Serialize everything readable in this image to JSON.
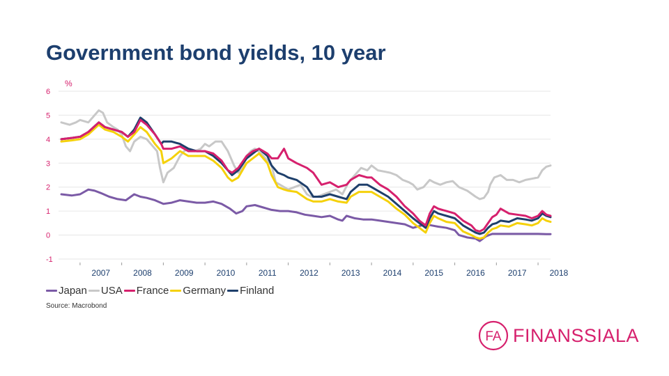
{
  "slide": {
    "title": "Government bond yields, 10 year",
    "source": "Source: Macrobond"
  },
  "logo": {
    "mark_letters": "FA",
    "name": "FINANSSIALA",
    "color": "#d6206d"
  },
  "chart_data": {
    "type": "line",
    "title": "Government bond yields, 10 year",
    "ylabel": "%",
    "xlabel": "",
    "ylim": [
      -1,
      6
    ],
    "yticks": [
      "6",
      "5",
      "4",
      "3",
      "2",
      "1",
      "0",
      "-1"
    ],
    "xlim": [
      2006.55,
      2018.3
    ],
    "year_labels": [
      "2007",
      "2008",
      "2009",
      "2010",
      "2011",
      "2012",
      "2013",
      "2014",
      "2015",
      "2016",
      "2017",
      "2018"
    ],
    "grid": true,
    "legend": "bottom-left",
    "series": [
      {
        "name": "USA",
        "color": "#c8c8c8",
        "x": [
          2006.55,
          2006.75,
          2006.9,
          2007.0,
          2007.2,
          2007.35,
          2007.45,
          2007.55,
          2007.65,
          2007.8,
          2007.9,
          2008.0,
          2008.1,
          2008.2,
          2008.3,
          2008.45,
          2008.6,
          2008.75,
          2008.85,
          2008.92,
          2009.0,
          2009.1,
          2009.25,
          2009.4,
          2009.5,
          2009.6,
          2009.75,
          2009.9,
          2010.0,
          2010.1,
          2010.25,
          2010.4,
          2010.55,
          2010.7,
          2010.8,
          2010.9,
          2011.0,
          2011.1,
          2011.2,
          2011.35,
          2011.5,
          2011.6,
          2011.7,
          2011.8,
          2011.9,
          2012.0,
          2012.15,
          2012.3,
          2012.45,
          2012.55,
          2012.7,
          2012.85,
          2013.0,
          2013.15,
          2013.3,
          2013.45,
          2013.6,
          2013.75,
          2013.9,
          2014.0,
          2014.15,
          2014.3,
          2014.45,
          2014.6,
          2014.75,
          2014.9,
          2015.0,
          2015.1,
          2015.25,
          2015.4,
          2015.5,
          2015.65,
          2015.8,
          2015.95,
          2016.1,
          2016.3,
          2016.5,
          2016.6,
          2016.7,
          2016.8,
          2016.85,
          2016.95,
          2017.1,
          2017.25,
          2017.4,
          2017.55,
          2017.7,
          2017.85,
          2018.0,
          2018.1,
          2018.2,
          2018.3
        ],
        "y": [
          4.7,
          4.6,
          4.7,
          4.8,
          4.7,
          5.0,
          5.2,
          5.1,
          4.7,
          4.5,
          4.4,
          4.2,
          3.7,
          3.5,
          3.9,
          4.1,
          4.0,
          3.7,
          3.5,
          2.8,
          2.2,
          2.6,
          2.8,
          3.3,
          3.5,
          3.6,
          3.5,
          3.6,
          3.8,
          3.7,
          3.9,
          3.9,
          3.5,
          2.9,
          2.6,
          2.8,
          3.3,
          3.5,
          3.6,
          3.4,
          3.1,
          2.9,
          2.2,
          2.1,
          2.0,
          1.9,
          2.0,
          2.1,
          1.7,
          1.6,
          1.6,
          1.7,
          1.8,
          1.9,
          1.7,
          2.2,
          2.5,
          2.8,
          2.7,
          2.9,
          2.7,
          2.65,
          2.6,
          2.5,
          2.3,
          2.2,
          2.1,
          1.9,
          2.0,
          2.3,
          2.2,
          2.1,
          2.2,
          2.25,
          2.0,
          1.85,
          1.6,
          1.5,
          1.55,
          1.8,
          2.1,
          2.4,
          2.5,
          2.3,
          2.3,
          2.2,
          2.3,
          2.35,
          2.4,
          2.7,
          2.85,
          2.9
        ]
      },
      {
        "name": "Japan",
        "color": "#7b5aa6",
        "x": [
          2006.55,
          2006.8,
          2007.0,
          2007.2,
          2007.35,
          2007.5,
          2007.7,
          2007.9,
          2008.1,
          2008.3,
          2008.45,
          2008.6,
          2008.8,
          2009.0,
          2009.2,
          2009.4,
          2009.6,
          2009.8,
          2010.0,
          2010.2,
          2010.4,
          2010.6,
          2010.75,
          2010.9,
          2011.0,
          2011.2,
          2011.4,
          2011.6,
          2011.8,
          2012.0,
          2012.2,
          2012.4,
          2012.6,
          2012.8,
          2013.0,
          2013.2,
          2013.3,
          2013.4,
          2013.6,
          2013.8,
          2014.0,
          2014.2,
          2014.4,
          2014.6,
          2014.8,
          2015.0,
          2015.1,
          2015.2,
          2015.3,
          2015.45,
          2015.6,
          2015.8,
          2016.0,
          2016.1,
          2016.3,
          2016.5,
          2016.6,
          2016.75,
          2016.9,
          2017.0,
          2017.2,
          2017.4,
          2017.6,
          2017.8,
          2018.0,
          2018.2,
          2018.3
        ],
        "y": [
          1.7,
          1.65,
          1.7,
          1.9,
          1.85,
          1.75,
          1.6,
          1.5,
          1.45,
          1.7,
          1.6,
          1.55,
          1.45,
          1.3,
          1.35,
          1.45,
          1.4,
          1.35,
          1.35,
          1.4,
          1.3,
          1.1,
          0.9,
          1.0,
          1.2,
          1.25,
          1.15,
          1.05,
          1.0,
          1.0,
          0.95,
          0.85,
          0.8,
          0.75,
          0.8,
          0.65,
          0.6,
          0.8,
          0.7,
          0.65,
          0.65,
          0.6,
          0.55,
          0.5,
          0.45,
          0.3,
          0.35,
          0.4,
          0.45,
          0.4,
          0.35,
          0.3,
          0.2,
          0.0,
          -0.1,
          -0.15,
          -0.25,
          -0.05,
          0.05,
          0.05,
          0.05,
          0.05,
          0.05,
          0.05,
          0.05,
          0.04,
          0.04
        ]
      },
      {
        "name": "Germany",
        "color": "#f5d10a",
        "x": [
          2006.55,
          2006.8,
          2007.0,
          2007.2,
          2007.45,
          2007.6,
          2007.8,
          2008.0,
          2008.15,
          2008.3,
          2008.45,
          2008.6,
          2008.8,
          2008.95,
          2009.0,
          2009.2,
          2009.4,
          2009.6,
          2009.8,
          2010.0,
          2010.2,
          2010.4,
          2010.55,
          2010.65,
          2010.8,
          2011.0,
          2011.15,
          2011.3,
          2011.5,
          2011.6,
          2011.75,
          2011.9,
          2012.0,
          2012.2,
          2012.45,
          2012.6,
          2012.8,
          2013.0,
          2013.2,
          2013.4,
          2013.5,
          2013.7,
          2013.9,
          2014.0,
          2014.2,
          2014.4,
          2014.6,
          2014.8,
          2015.0,
          2015.15,
          2015.3,
          2015.4,
          2015.5,
          2015.6,
          2015.8,
          2016.0,
          2016.2,
          2016.4,
          2016.5,
          2016.6,
          2016.7,
          2016.8,
          2016.9,
          2017.0,
          2017.1,
          2017.3,
          2017.5,
          2017.7,
          2017.85,
          2018.0,
          2018.1,
          2018.2,
          2018.3
        ],
        "y": [
          3.9,
          3.95,
          4.0,
          4.2,
          4.6,
          4.4,
          4.3,
          4.1,
          3.9,
          4.2,
          4.5,
          4.3,
          3.8,
          3.5,
          3.0,
          3.2,
          3.5,
          3.3,
          3.3,
          3.3,
          3.1,
          2.8,
          2.4,
          2.25,
          2.4,
          3.0,
          3.2,
          3.4,
          3.0,
          2.5,
          2.0,
          1.9,
          1.85,
          1.8,
          1.5,
          1.4,
          1.4,
          1.5,
          1.4,
          1.35,
          1.6,
          1.8,
          1.8,
          1.8,
          1.6,
          1.4,
          1.1,
          0.85,
          0.5,
          0.3,
          0.1,
          0.5,
          0.8,
          0.7,
          0.55,
          0.5,
          0.15,
          0.0,
          -0.1,
          -0.15,
          -0.1,
          0.1,
          0.25,
          0.3,
          0.4,
          0.35,
          0.5,
          0.45,
          0.4,
          0.5,
          0.7,
          0.6,
          0.55
        ]
      },
      {
        "name": "Finland",
        "color": "#1e3f6b",
        "x": [
          2006.55,
          2006.8,
          2007.0,
          2007.2,
          2007.45,
          2007.6,
          2007.8,
          2008.0,
          2008.15,
          2008.3,
          2008.45,
          2008.6,
          2008.8,
          2008.95,
          2009.0,
          2009.2,
          2009.4,
          2009.6,
          2009.8,
          2010.0,
          2010.2,
          2010.4,
          2010.55,
          2010.65,
          2010.8,
          2011.0,
          2011.15,
          2011.3,
          2011.5,
          2011.6,
          2011.75,
          2011.9,
          2012.0,
          2012.2,
          2012.45,
          2012.6,
          2012.8,
          2013.0,
          2013.2,
          2013.4,
          2013.5,
          2013.7,
          2013.9,
          2014.0,
          2014.2,
          2014.4,
          2014.6,
          2014.8,
          2015.0,
          2015.15,
          2015.3,
          2015.4,
          2015.5,
          2015.6,
          2015.8,
          2016.0,
          2016.2,
          2016.4,
          2016.5,
          2016.6,
          2016.7,
          2016.8,
          2016.9,
          2017.0,
          2017.1,
          2017.3,
          2017.5,
          2017.7,
          2017.85,
          2018.0,
          2018.1,
          2018.2,
          2018.3
        ],
        "y": [
          4.0,
          4.05,
          4.1,
          4.3,
          4.7,
          4.5,
          4.4,
          4.3,
          4.1,
          4.4,
          4.9,
          4.7,
          4.2,
          3.8,
          3.9,
          3.9,
          3.8,
          3.6,
          3.5,
          3.5,
          3.3,
          3.0,
          2.7,
          2.5,
          2.7,
          3.2,
          3.4,
          3.6,
          3.3,
          2.9,
          2.6,
          2.5,
          2.4,
          2.3,
          2.0,
          1.6,
          1.6,
          1.7,
          1.6,
          1.5,
          1.8,
          2.1,
          2.1,
          2.0,
          1.8,
          1.6,
          1.3,
          1.0,
          0.7,
          0.5,
          0.3,
          0.7,
          1.0,
          0.9,
          0.8,
          0.7,
          0.4,
          0.2,
          0.1,
          0.05,
          0.1,
          0.3,
          0.45,
          0.5,
          0.6,
          0.55,
          0.7,
          0.65,
          0.6,
          0.7,
          0.9,
          0.8,
          0.75
        ]
      },
      {
        "name": "France",
        "color": "#d6206d",
        "x": [
          2006.55,
          2006.8,
          2007.0,
          2007.2,
          2007.45,
          2007.6,
          2007.8,
          2008.0,
          2008.15,
          2008.3,
          2008.45,
          2008.6,
          2008.8,
          2008.95,
          2009.0,
          2009.2,
          2009.4,
          2009.6,
          2009.8,
          2010.0,
          2010.2,
          2010.4,
          2010.55,
          2010.65,
          2010.8,
          2011.0,
          2011.15,
          2011.3,
          2011.5,
          2011.6,
          2011.75,
          2011.9,
          2012.0,
          2012.2,
          2012.45,
          2012.6,
          2012.8,
          2013.0,
          2013.2,
          2013.4,
          2013.5,
          2013.7,
          2013.9,
          2014.0,
          2014.2,
          2014.4,
          2014.6,
          2014.8,
          2015.0,
          2015.15,
          2015.3,
          2015.4,
          2015.5,
          2015.6,
          2015.8,
          2016.0,
          2016.2,
          2016.4,
          2016.5,
          2016.6,
          2016.7,
          2016.8,
          2016.9,
          2017.0,
          2017.1,
          2017.3,
          2017.5,
          2017.7,
          2017.85,
          2018.0,
          2018.1,
          2018.2,
          2018.3
        ],
        "y": [
          4.0,
          4.05,
          4.1,
          4.3,
          4.7,
          4.5,
          4.4,
          4.3,
          4.1,
          4.3,
          4.8,
          4.6,
          4.2,
          3.8,
          3.6,
          3.6,
          3.7,
          3.5,
          3.5,
          3.5,
          3.4,
          3.1,
          2.7,
          2.6,
          2.8,
          3.3,
          3.5,
          3.6,
          3.4,
          3.2,
          3.2,
          3.6,
          3.2,
          3.0,
          2.8,
          2.6,
          2.1,
          2.2,
          2.0,
          2.1,
          2.3,
          2.5,
          2.4,
          2.4,
          2.1,
          1.9,
          1.6,
          1.2,
          0.9,
          0.6,
          0.4,
          0.9,
          1.2,
          1.1,
          1.0,
          0.9,
          0.6,
          0.4,
          0.2,
          0.15,
          0.25,
          0.5,
          0.75,
          0.85,
          1.1,
          0.9,
          0.85,
          0.8,
          0.7,
          0.8,
          1.0,
          0.85,
          0.8
        ]
      }
    ],
    "legend_order": [
      "Japan",
      "USA",
      "France",
      "Germany",
      "Finland"
    ]
  }
}
